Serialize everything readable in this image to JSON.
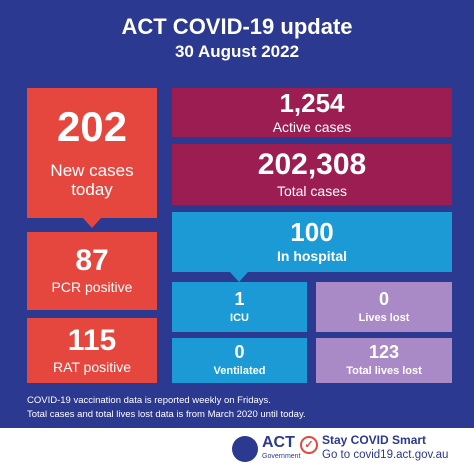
{
  "header": {
    "title": "ACT COVID-19 update",
    "date": "30 August 2022"
  },
  "tiles": [
    {
      "value": "202",
      "label": "New cases today"
    },
    {
      "value": "87",
      "label": "PCR positive"
    },
    {
      "value": "115",
      "label": "RAT positive"
    },
    {
      "value": "1,254",
      "label": "Active cases"
    },
    {
      "value": "202,308",
      "label": "Total cases"
    },
    {
      "value": "100",
      "label": "In hospital"
    },
    {
      "value": "1",
      "label": "ICU"
    },
    {
      "value": "0",
      "label": "Ventilated"
    },
    {
      "value": "0",
      "label": "Lives lost"
    },
    {
      "value": "123",
      "label": "Total lives lost"
    }
  ],
  "footer": {
    "notes": [
      "COVID-19 vaccination data is reported weekly on Fridays.",
      "Total cases and total lives lost data is from March 2020 until today."
    ],
    "logo": {
      "name": "ACT",
      "sub": "Government"
    },
    "smart": {
      "title": "Stay COVID Smart",
      "link": "Go to covid19.act.gov.au"
    }
  }
}
